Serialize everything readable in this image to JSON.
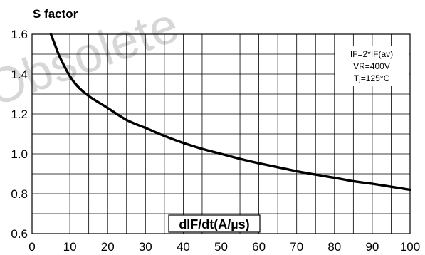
{
  "watermark": "Obsolete",
  "chart_data": {
    "type": "line",
    "title": "",
    "ylabel": "S factor",
    "xlabel": "dIF/dt(A/µs)",
    "xlim": [
      0,
      100
    ],
    "ylim": [
      0.6,
      1.6
    ],
    "x_ticks": [
      "0",
      "10",
      "20",
      "30",
      "40",
      "50",
      "60",
      "70",
      "80",
      "90",
      "100"
    ],
    "y_ticks": [
      "0.6",
      "0.8",
      "1.0",
      "1.2",
      "1.4",
      "1.6"
    ],
    "grid": true,
    "annotations": [
      "IF=2*IF(av)",
      "VR=400V",
      "Tj=125°C"
    ],
    "series": [
      {
        "x": [
          5,
          6,
          7,
          8,
          10,
          12,
          15,
          20,
          25,
          30,
          35,
          40,
          45,
          50,
          55,
          60,
          65,
          70,
          75,
          80,
          85,
          90,
          95,
          100
        ],
        "y": [
          1.6,
          1.55,
          1.5,
          1.46,
          1.39,
          1.34,
          1.29,
          1.23,
          1.17,
          1.13,
          1.09,
          1.055,
          1.025,
          1.0,
          0.975,
          0.953,
          0.933,
          0.913,
          0.896,
          0.88,
          0.863,
          0.85,
          0.835,
          0.82
        ],
        "color": "#000000"
      }
    ]
  }
}
